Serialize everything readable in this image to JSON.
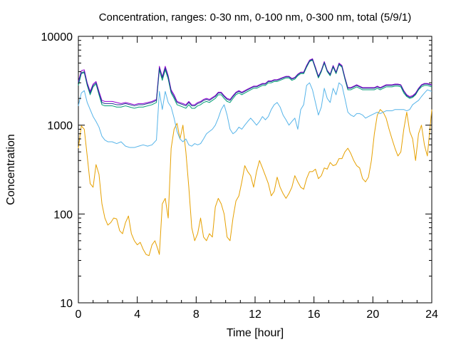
{
  "chart_data": {
    "type": "line",
    "title": "Concentration, ranges: 0-30 nm, 0-100 nm, 0-300 nm, total (5/9/1)",
    "xlabel": "Time [hour]",
    "ylabel": "Concentration",
    "xlim": [
      0,
      24
    ],
    "ylim": [
      10,
      10000
    ],
    "y_scale": "log",
    "grid": false,
    "legend": "none",
    "x_ticks": [
      "0",
      "4",
      "8",
      "12",
      "16",
      "20",
      "24"
    ],
    "x_tick_values": [
      0,
      4,
      8,
      12,
      16,
      20,
      24
    ],
    "y_ticks": [
      "10",
      "100",
      "1000",
      "10000"
    ],
    "y_tick_values": [
      10,
      100,
      1000,
      10000
    ],
    "series": [
      {
        "color": "#e6a000",
        "x": [
          0,
          0.2,
          0.4,
          0.6,
          0.8,
          1.0,
          1.2,
          1.4,
          1.6,
          1.8,
          2.0,
          2.2,
          2.4,
          2.6,
          2.8,
          3.0,
          3.2,
          3.4,
          3.6,
          3.8,
          4.0,
          4.2,
          4.4,
          4.6,
          4.8,
          5.0,
          5.2,
          5.4,
          5.5,
          5.7,
          5.9,
          6.1,
          6.3,
          6.5,
          6.7,
          6.9,
          7.1,
          7.3,
          7.5,
          7.7,
          7.9,
          8.1,
          8.3,
          8.5,
          8.7,
          8.9,
          9.1,
          9.3,
          9.5,
          9.7,
          9.9,
          10.1,
          10.3,
          10.5,
          10.7,
          10.9,
          11.1,
          11.3,
          11.5,
          11.7,
          11.9,
          12.1,
          12.3,
          12.5,
          12.7,
          12.9,
          13.1,
          13.3,
          13.5,
          13.7,
          13.9,
          14.1,
          14.3,
          14.5,
          14.7,
          14.9,
          15.1,
          15.3,
          15.5,
          15.7,
          15.9,
          16.1,
          16.3,
          16.5,
          16.7,
          16.9,
          17.1,
          17.3,
          17.5,
          17.7,
          17.9,
          18.1,
          18.3,
          18.5,
          18.7,
          18.9,
          19.1,
          19.3,
          19.5,
          19.7,
          19.9,
          20.1,
          20.3,
          20.5,
          20.7,
          20.9,
          21.1,
          21.3,
          21.5,
          21.7,
          21.9,
          22.1,
          22.3,
          22.5,
          22.7,
          22.9,
          23.1,
          23.3,
          23.5,
          23.7,
          24.0
        ],
        "values": [
          550,
          980,
          900,
          450,
          220,
          200,
          360,
          280,
          130,
          90,
          75,
          80,
          90,
          88,
          65,
          60,
          80,
          95,
          60,
          50,
          45,
          48,
          40,
          35,
          34,
          45,
          50,
          40,
          35,
          130,
          150,
          90,
          550,
          900,
          1050,
          700,
          1000,
          500,
          200,
          70,
          50,
          60,
          90,
          55,
          50,
          60,
          55,
          120,
          150,
          130,
          100,
          55,
          50,
          90,
          140,
          160,
          230,
          350,
          300,
          270,
          200,
          300,
          400,
          330,
          270,
          220,
          160,
          180,
          260,
          200,
          170,
          150,
          170,
          200,
          270,
          230,
          200,
          190,
          250,
          300,
          300,
          320,
          250,
          270,
          330,
          320,
          380,
          350,
          360,
          420,
          420,
          500,
          550,
          480,
          400,
          350,
          330,
          250,
          230,
          260,
          400,
          800,
          1300,
          1500,
          1400,
          1200,
          900,
          700,
          550,
          450,
          500,
          900,
          1400,
          850,
          700,
          400,
          800,
          1000,
          600,
          450,
          1500
        ]
      },
      {
        "color": "#56b4e9",
        "x": [
          0,
          0.2,
          0.4,
          0.6,
          0.8,
          1.0,
          1.2,
          1.4,
          1.6,
          1.8,
          2.0,
          2.3,
          2.6,
          2.9,
          3.2,
          3.5,
          3.8,
          4.1,
          4.4,
          4.7,
          5.0,
          5.3,
          5.5,
          5.7,
          5.9,
          6.1,
          6.3,
          6.5,
          6.7,
          6.9,
          7.1,
          7.3,
          7.5,
          7.7,
          7.9,
          8.1,
          8.3,
          8.5,
          8.7,
          8.9,
          9.1,
          9.3,
          9.5,
          9.7,
          9.9,
          10.1,
          10.3,
          10.5,
          10.7,
          10.9,
          11.1,
          11.3,
          11.5,
          11.7,
          11.9,
          12.1,
          12.3,
          12.5,
          12.7,
          12.9,
          13.1,
          13.3,
          13.5,
          13.7,
          13.9,
          14.1,
          14.3,
          14.5,
          14.7,
          14.9,
          15.1,
          15.3,
          15.5,
          15.7,
          15.9,
          16.1,
          16.3,
          16.5,
          16.7,
          16.9,
          17.1,
          17.3,
          17.5,
          17.7,
          17.9,
          18.1,
          18.3,
          18.5,
          18.7,
          18.9,
          19.1,
          19.3,
          19.5,
          19.7,
          19.9,
          20.1,
          20.3,
          20.5,
          20.7,
          20.9,
          21.1,
          21.3,
          21.5,
          21.7,
          21.9,
          22.1,
          22.3,
          22.5,
          22.7,
          22.9,
          23.1,
          23.3,
          23.5,
          23.7,
          24.0
        ],
        "values": [
          1650,
          2300,
          2450,
          1800,
          1500,
          1250,
          1100,
          950,
          750,
          680,
          650,
          650,
          620,
          650,
          580,
          560,
          560,
          580,
          600,
          580,
          600,
          680,
          2400,
          1500,
          2400,
          1800,
          1600,
          1200,
          850,
          700,
          650,
          700,
          600,
          580,
          620,
          600,
          620,
          700,
          800,
          850,
          900,
          1000,
          1200,
          1500,
          1700,
          1300,
          900,
          800,
          850,
          950,
          900,
          1000,
          1100,
          1200,
          1100,
          1000,
          1100,
          1250,
          1150,
          1250,
          1500,
          1700,
          1800,
          1600,
          1300,
          1150,
          1000,
          1100,
          1200,
          900,
          1500,
          1700,
          2800,
          3000,
          2500,
          1800,
          1300,
          1600,
          2600,
          2000,
          1800,
          2600,
          2200,
          3000,
          2800,
          2000,
          1400,
          1300,
          1250,
          1350,
          1350,
          1300,
          1200,
          1250,
          1300,
          1350,
          1400,
          1350,
          1400,
          1450,
          1450,
          1450,
          1500,
          1500,
          1500,
          1500,
          1450,
          1500,
          1700,
          1800,
          1900,
          2100,
          2300,
          2500,
          2400
        ]
      },
      {
        "color": "#009e73",
        "x": [
          0,
          0.2,
          0.4,
          0.6,
          0.8,
          1.0,
          1.2,
          1.4,
          1.6,
          1.8,
          2.0,
          2.3,
          2.6,
          2.9,
          3.2,
          3.5,
          3.8,
          4.1,
          4.4,
          4.7,
          5.0,
          5.3,
          5.5,
          5.7,
          5.9,
          6.1,
          6.3,
          6.5,
          6.7,
          6.9,
          7.1,
          7.3,
          7.5,
          7.7,
          7.9,
          8.1,
          8.3,
          8.5,
          8.7,
          8.9,
          9.1,
          9.3,
          9.5,
          9.7,
          9.9,
          10.1,
          10.3,
          10.5,
          10.7,
          10.9,
          11.1,
          11.3,
          11.5,
          11.7,
          11.9,
          12.1,
          12.3,
          12.5,
          12.7,
          12.9,
          13.1,
          13.3,
          13.5,
          13.7,
          13.9,
          14.1,
          14.3,
          14.5,
          14.7,
          14.9,
          15.1,
          15.3,
          15.5,
          15.7,
          15.9,
          16.1,
          16.3,
          16.5,
          16.7,
          16.9,
          17.1,
          17.3,
          17.5,
          17.7,
          17.9,
          18.1,
          18.3,
          18.5,
          18.7,
          18.9,
          19.1,
          19.3,
          19.5,
          19.7,
          19.9,
          20.1,
          20.3,
          20.5,
          20.7,
          20.9,
          21.1,
          21.3,
          21.5,
          21.7,
          21.9,
          22.1,
          22.3,
          22.5,
          22.7,
          22.9,
          23.1,
          23.3,
          23.5,
          23.7,
          24.0
        ],
        "values": [
          2800,
          3800,
          3900,
          2800,
          2200,
          2700,
          2900,
          2200,
          1700,
          1650,
          1650,
          1650,
          1600,
          1600,
          1650,
          1600,
          1550,
          1600,
          1600,
          1650,
          1700,
          1800,
          4200,
          3200,
          4200,
          3300,
          2300,
          2000,
          1700,
          1650,
          1600,
          1550,
          1700,
          1550,
          1550,
          1650,
          1700,
          1800,
          1850,
          1800,
          1900,
          2000,
          2200,
          2200,
          2000,
          1850,
          1800,
          2000,
          2200,
          2300,
          2200,
          2300,
          2400,
          2500,
          2600,
          2600,
          2700,
          2800,
          2800,
          3000,
          3000,
          3100,
          3100,
          3200,
          3300,
          3400,
          3400,
          3200,
          3300,
          3600,
          3800,
          3800,
          4500,
          5200,
          5400,
          4300,
          3400,
          4000,
          5000,
          4000,
          3600,
          4500,
          3800,
          4800,
          4500,
          3300,
          2500,
          2500,
          2600,
          2700,
          2600,
          2500,
          2500,
          2500,
          2500,
          2500,
          2600,
          2500,
          2600,
          2700,
          2700,
          2700,
          2750,
          2750,
          2700,
          2300,
          2100,
          2000,
          2050,
          2200,
          2500,
          2700,
          2800,
          2800,
          2700
        ]
      },
      {
        "color": "#9400d3",
        "x": [
          0,
          0.2,
          0.4,
          0.6,
          0.8,
          1.0,
          1.2,
          1.4,
          1.6,
          1.8,
          2.0,
          2.3,
          2.6,
          2.9,
          3.2,
          3.5,
          3.8,
          4.1,
          4.4,
          4.7,
          5.0,
          5.3,
          5.5,
          5.7,
          5.9,
          6.1,
          6.3,
          6.5,
          6.7,
          6.9,
          7.1,
          7.3,
          7.5,
          7.7,
          7.9,
          8.1,
          8.3,
          8.5,
          8.7,
          8.9,
          9.1,
          9.3,
          9.5,
          9.7,
          9.9,
          10.1,
          10.3,
          10.5,
          10.7,
          10.9,
          11.1,
          11.3,
          11.5,
          11.7,
          11.9,
          12.1,
          12.3,
          12.5,
          12.7,
          12.9,
          13.1,
          13.3,
          13.5,
          13.7,
          13.9,
          14.1,
          14.3,
          14.5,
          14.7,
          14.9,
          15.1,
          15.3,
          15.5,
          15.7,
          15.9,
          16.1,
          16.3,
          16.5,
          16.7,
          16.9,
          17.1,
          17.3,
          17.5,
          17.7,
          17.9,
          18.1,
          18.3,
          18.5,
          18.7,
          18.9,
          19.1,
          19.3,
          19.5,
          19.7,
          19.9,
          20.1,
          20.3,
          20.5,
          20.7,
          20.9,
          21.1,
          21.3,
          21.5,
          21.7,
          21.9,
          22.1,
          22.3,
          22.5,
          22.7,
          22.9,
          23.1,
          23.3,
          23.5,
          23.7,
          24.0
        ],
        "values": [
          3100,
          4100,
          4200,
          3000,
          2400,
          2900,
          3100,
          2400,
          1900,
          1850,
          1850,
          1850,
          1800,
          1750,
          1800,
          1750,
          1700,
          1750,
          1750,
          1800,
          1850,
          1950,
          4600,
          3500,
          4600,
          3600,
          2500,
          2200,
          1850,
          1800,
          1750,
          1700,
          1850,
          1700,
          1700,
          1800,
          1850,
          1950,
          2000,
          1950,
          2050,
          2150,
          2350,
          2350,
          2150,
          2000,
          1950,
          2150,
          2350,
          2450,
          2350,
          2450,
          2550,
          2650,
          2750,
          2750,
          2850,
          2950,
          2950,
          3150,
          3150,
          3250,
          3250,
          3350,
          3450,
          3550,
          3550,
          3350,
          3450,
          3750,
          3950,
          3950,
          4700,
          5400,
          5600,
          4500,
          3550,
          4150,
          5200,
          4150,
          3750,
          4700,
          3950,
          5000,
          4700,
          3450,
          2650,
          2650,
          2750,
          2850,
          2750,
          2650,
          2650,
          2650,
          2650,
          2650,
          2750,
          2650,
          2750,
          2850,
          2850,
          2850,
          2900,
          2900,
          2850,
          2450,
          2200,
          2100,
          2150,
          2300,
          2600,
          2850,
          2950,
          2950,
          2850
        ]
      },
      {
        "color": "#1f3a93",
        "x": [
          0,
          0.2,
          0.4,
          0.6,
          0.8,
          1.0,
          1.2,
          1.4,
          1.6,
          1.8,
          2.0,
          2.3,
          2.6,
          2.9,
          3.2,
          3.5,
          3.8,
          4.1,
          4.4,
          4.7,
          5.0,
          5.3,
          5.5,
          5.7,
          5.9,
          6.1,
          6.3,
          6.5,
          6.7,
          6.9,
          7.1,
          7.3,
          7.5,
          7.7,
          7.9,
          8.1,
          8.3,
          8.5,
          8.7,
          8.9,
          9.1,
          9.3,
          9.5,
          9.7,
          9.9,
          10.1,
          10.3,
          10.5,
          10.7,
          10.9,
          11.1,
          11.3,
          11.5,
          11.7,
          11.9,
          12.1,
          12.3,
          12.5,
          12.7,
          12.9,
          13.1,
          13.3,
          13.5,
          13.7,
          13.9,
          14.1,
          14.3,
          14.5,
          14.7,
          14.9,
          15.1,
          15.3,
          15.5,
          15.7,
          15.9,
          16.1,
          16.3,
          16.5,
          16.7,
          16.9,
          17.1,
          17.3,
          17.5,
          17.7,
          17.9,
          18.1,
          18.3,
          18.5,
          18.7,
          18.9,
          19.1,
          19.3,
          19.5,
          19.7,
          19.9,
          20.1,
          20.3,
          20.5,
          20.7,
          20.9,
          21.1,
          21.3,
          21.5,
          21.7,
          21.9,
          22.1,
          22.3,
          22.5,
          22.7,
          22.9,
          23.1,
          23.3,
          23.5,
          23.7,
          24.0
        ],
        "values": [
          3000,
          3900,
          4000,
          2900,
          2300,
          2800,
          3000,
          2300,
          1800,
          1750,
          1750,
          1750,
          1700,
          1700,
          1750,
          1700,
          1650,
          1700,
          1700,
          1750,
          1800,
          1900,
          4400,
          3400,
          4400,
          3500,
          2400,
          2100,
          1800,
          1750,
          1700,
          1650,
          1800,
          1650,
          1650,
          1750,
          1800,
          1900,
          1950,
          1900,
          2000,
          2100,
          2300,
          2300,
          2100,
          1950,
          1900,
          2100,
          2300,
          2400,
          2300,
          2400,
          2500,
          2600,
          2700,
          2700,
          2800,
          2900,
          2900,
          3100,
          3100,
          3200,
          3200,
          3300,
          3400,
          3500,
          3500,
          3300,
          3400,
          3700,
          3900,
          3900,
          4600,
          5300,
          5500,
          4400,
          3500,
          4100,
          5100,
          4100,
          3700,
          4600,
          3900,
          4900,
          4600,
          3400,
          2600,
          2600,
          2700,
          2800,
          2700,
          2600,
          2600,
          2600,
          2600,
          2600,
          2700,
          2600,
          2700,
          2800,
          2800,
          2800,
          2850,
          2850,
          2800,
          2400,
          2150,
          2050,
          2100,
          2250,
          2550,
          2800,
          2900,
          2900,
          2800
        ]
      }
    ]
  }
}
